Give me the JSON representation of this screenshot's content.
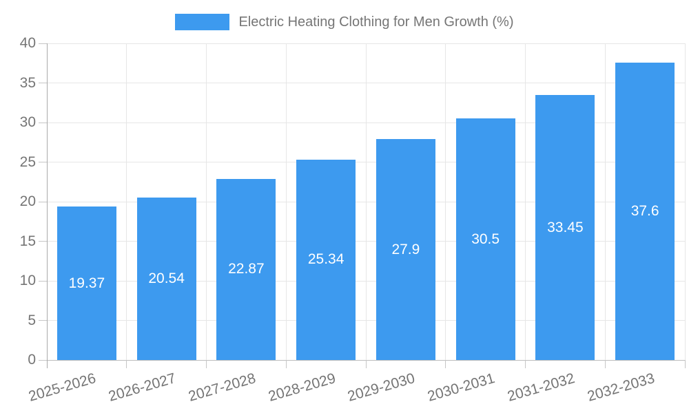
{
  "chart_data": {
    "type": "bar",
    "title": "Electric Heating Clothing for Men Growth (%)",
    "legend": [
      "Electric Heating Clothing for Men Growth (%)"
    ],
    "legend_position": "top",
    "categories": [
      "2025-2026",
      "2026-2027",
      "2027-2028",
      "2028-2029",
      "2029-2030",
      "2030-2031",
      "2031-2032",
      "2032-2033"
    ],
    "series": [
      {
        "name": "Electric Heating Clothing for Men Growth (%)",
        "values": [
          19.37,
          20.54,
          22.87,
          25.34,
          27.9,
          30.5,
          33.45,
          37.6
        ]
      }
    ],
    "values": [
      19.37,
      20.54,
      22.87,
      25.34,
      27.9,
      30.5,
      33.45,
      37.6
    ],
    "value_labels": [
      "19.37",
      "20.54",
      "22.87",
      "25.34",
      "27.9",
      "30.5",
      "33.45",
      "37.6"
    ],
    "xlabel": "",
    "ylabel": "",
    "ylim": [
      0,
      40
    ],
    "yticks": [
      0,
      5,
      10,
      15,
      20,
      25,
      30,
      35,
      40
    ],
    "grid": true,
    "colors": {
      "bar": "#3D9AEF",
      "value_label": "#FFFFFF",
      "axis_text": "#757575",
      "gridline": "#E6E6E6",
      "y_axis_line": "#A9A9A9",
      "x_axis_line": "#BDBDBD",
      "tick": "#C6C6C6",
      "background": "#FFFFFF"
    }
  }
}
